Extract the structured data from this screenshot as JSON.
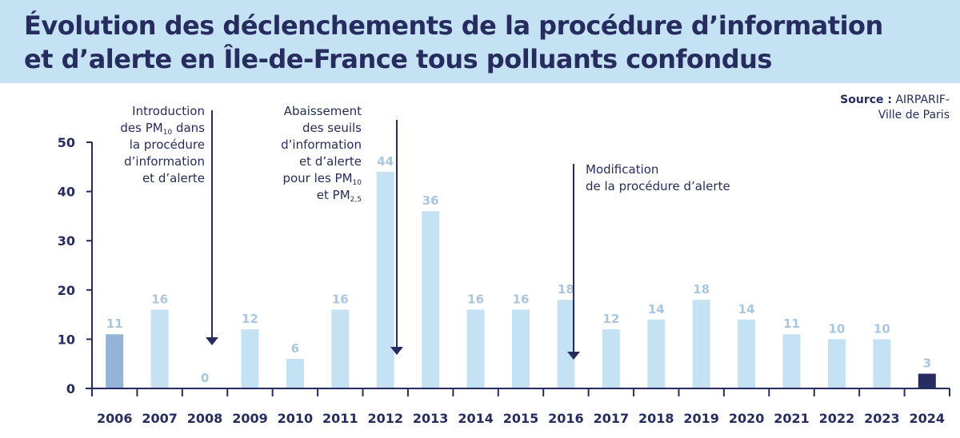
{
  "header": {
    "title_line1": "Évolution des déclenchements de la procédure d’information",
    "title_line2": "et d’alerte en Île-de-France tous polluants confondus"
  },
  "source": {
    "label": "Source :",
    "value_line1": "AIRPARIF-",
    "value_line2": "Ville de Paris"
  },
  "colors": {
    "header_bg": "#c5e1f4",
    "text": "#262c5e",
    "bar_default": "#c5e1f4",
    "bar_first": "#93b3d8",
    "bar_last": "#262c5e",
    "value_label": "#a9c6e0"
  },
  "chart_data": {
    "type": "bar",
    "title": "Évolution des déclenchements de la procédure d’information et d’alerte en Île-de-France tous polluants confondus",
    "xlabel": "",
    "ylabel": "",
    "ylim": [
      0,
      50
    ],
    "yticks": [
      0,
      10,
      20,
      30,
      40,
      50
    ],
    "grid": false,
    "categories": [
      "2006",
      "2007",
      "2008",
      "2009",
      "2010",
      "2011",
      "2012",
      "2013",
      "2014",
      "2015",
      "2016",
      "2017",
      "2018",
      "2019",
      "2020",
      "2021",
      "2022",
      "2023",
      "2024"
    ],
    "values": [
      11,
      16,
      0,
      12,
      6,
      16,
      44,
      36,
      16,
      16,
      18,
      12,
      14,
      18,
      14,
      11,
      10,
      10,
      3
    ],
    "annotations": [
      {
        "after_category": "2008",
        "lines": [
          {
            "text": "Introduction"
          },
          {
            "text": "des PM",
            "sub": "10",
            "tail": " dans"
          },
          {
            "text": "la procédure"
          },
          {
            "text": "d’information"
          },
          {
            "text": "et d’alerte"
          }
        ]
      },
      {
        "after_category": "2012",
        "lines": [
          {
            "text": "Abaissement"
          },
          {
            "text": "des seuils"
          },
          {
            "text": "d’information"
          },
          {
            "text": "et d’alerte"
          },
          {
            "text": "pour les PM",
            "sub": "10",
            "tail": ""
          },
          {
            "text": "et PM",
            "sub": "2,5",
            "tail": ""
          }
        ]
      },
      {
        "after_category": "2016",
        "lines": [
          {
            "text": "Modification"
          },
          {
            "text": "de la procédure d’alerte"
          }
        ]
      }
    ]
  }
}
